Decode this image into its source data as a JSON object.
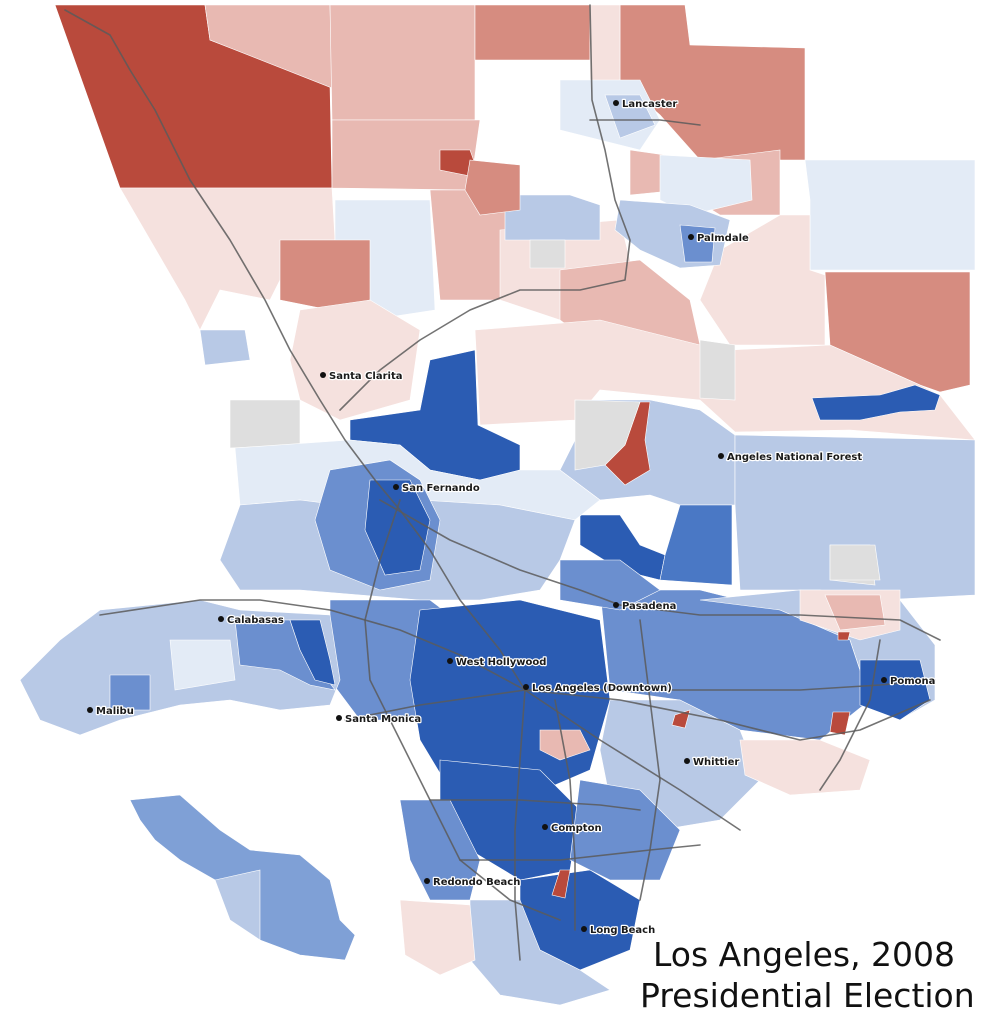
{
  "title": {
    "line1": "Los Angeles, 2008",
    "line2": "Presidential Election"
  },
  "colors": {
    "dem_dark": "#2b5cb3",
    "dem_mid": "#6b8fcf",
    "dem_light": "#b8c9e6",
    "dem_pale": "#e3ebf6",
    "rep_dark": "#b94a3c",
    "rep_mid": "#d68c80",
    "rep_light": "#e8b9b2",
    "rep_pale": "#f5e1de",
    "nodata": "#dedede",
    "highway": "#5a5a5a"
  },
  "cities": [
    {
      "id": "lancaster",
      "name": "Lancaster"
    },
    {
      "id": "palmdale",
      "name": "Palmdale"
    },
    {
      "id": "santa-clarita",
      "name": "Santa Clarita"
    },
    {
      "id": "angeles-national-forest",
      "name": "Angeles National Forest"
    },
    {
      "id": "san-fernando",
      "name": "San Fernando"
    },
    {
      "id": "pasadena",
      "name": "Pasadena"
    },
    {
      "id": "calabasas",
      "name": "Calabasas"
    },
    {
      "id": "west-hollywood",
      "name": "West Hollywood"
    },
    {
      "id": "los-angeles-downtown",
      "name": "Los Angeles (Downtown)"
    },
    {
      "id": "pomona",
      "name": "Pomona"
    },
    {
      "id": "malibu",
      "name": "Malibu"
    },
    {
      "id": "santa-monica",
      "name": "Santa Monica"
    },
    {
      "id": "whittier",
      "name": "Whittier"
    },
    {
      "id": "compton",
      "name": "Compton"
    },
    {
      "id": "redondo-beach",
      "name": "Redondo Beach"
    },
    {
      "id": "long-beach",
      "name": "Long Beach"
    }
  ]
}
